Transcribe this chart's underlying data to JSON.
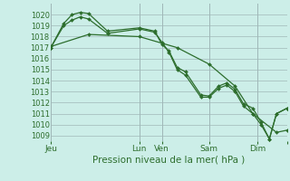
{
  "background_color": "#cceee8",
  "grid_color": "#a0b8b8",
  "line_color": "#2d6e2d",
  "marker_color": "#2d6e2d",
  "title": "Pression niveau de la mer( hPa )",
  "ylim": [
    1008.5,
    1021.0
  ],
  "yticks": [
    1009,
    1010,
    1011,
    1012,
    1013,
    1014,
    1015,
    1016,
    1017,
    1018,
    1019,
    1020
  ],
  "xlim": [
    0,
    1.0
  ],
  "xtick_positions": [
    0.0,
    0.375,
    0.47,
    0.67,
    0.875,
    1.0
  ],
  "xtick_labels": [
    "Jeu",
    "Lun",
    "Ven",
    "Sam",
    "Dim",
    ""
  ],
  "lines": [
    {
      "x": [
        0.0,
        0.055,
        0.09,
        0.125,
        0.16,
        0.24,
        0.375,
        0.44,
        0.47,
        0.5,
        0.535,
        0.57,
        0.635,
        0.67,
        0.71,
        0.745,
        0.78,
        0.815,
        0.855,
        0.89,
        0.925,
        0.955,
        1.0
      ],
      "y": [
        1017.0,
        1019.2,
        1020.0,
        1020.2,
        1020.1,
        1018.5,
        1018.8,
        1018.5,
        1017.3,
        1016.7,
        1015.2,
        1014.8,
        1012.7,
        1012.6,
        1013.5,
        1013.8,
        1013.2,
        1011.9,
        1011.5,
        1010.2,
        1008.7,
        1011.0,
        1011.5
      ]
    },
    {
      "x": [
        0.0,
        0.055,
        0.09,
        0.125,
        0.16,
        0.24,
        0.375,
        0.44,
        0.47,
        0.5,
        0.535,
        0.57,
        0.635,
        0.67,
        0.71,
        0.745,
        0.78,
        0.815,
        0.855,
        0.89,
        0.925,
        0.955,
        1.0
      ],
      "y": [
        1017.0,
        1019.0,
        1019.5,
        1019.8,
        1019.6,
        1018.3,
        1018.7,
        1018.4,
        1017.5,
        1016.6,
        1015.0,
        1014.5,
        1012.5,
        1012.5,
        1013.3,
        1013.6,
        1013.0,
        1011.7,
        1011.0,
        1010.0,
        1008.7,
        1011.0,
        1011.5
      ]
    },
    {
      "x": [
        0.0,
        0.16,
        0.375,
        0.535,
        0.67,
        0.78,
        0.855,
        0.955,
        1.0
      ],
      "y": [
        1017.1,
        1018.2,
        1018.0,
        1017.0,
        1015.5,
        1013.5,
        1011.0,
        1009.3,
        1009.5
      ]
    }
  ]
}
